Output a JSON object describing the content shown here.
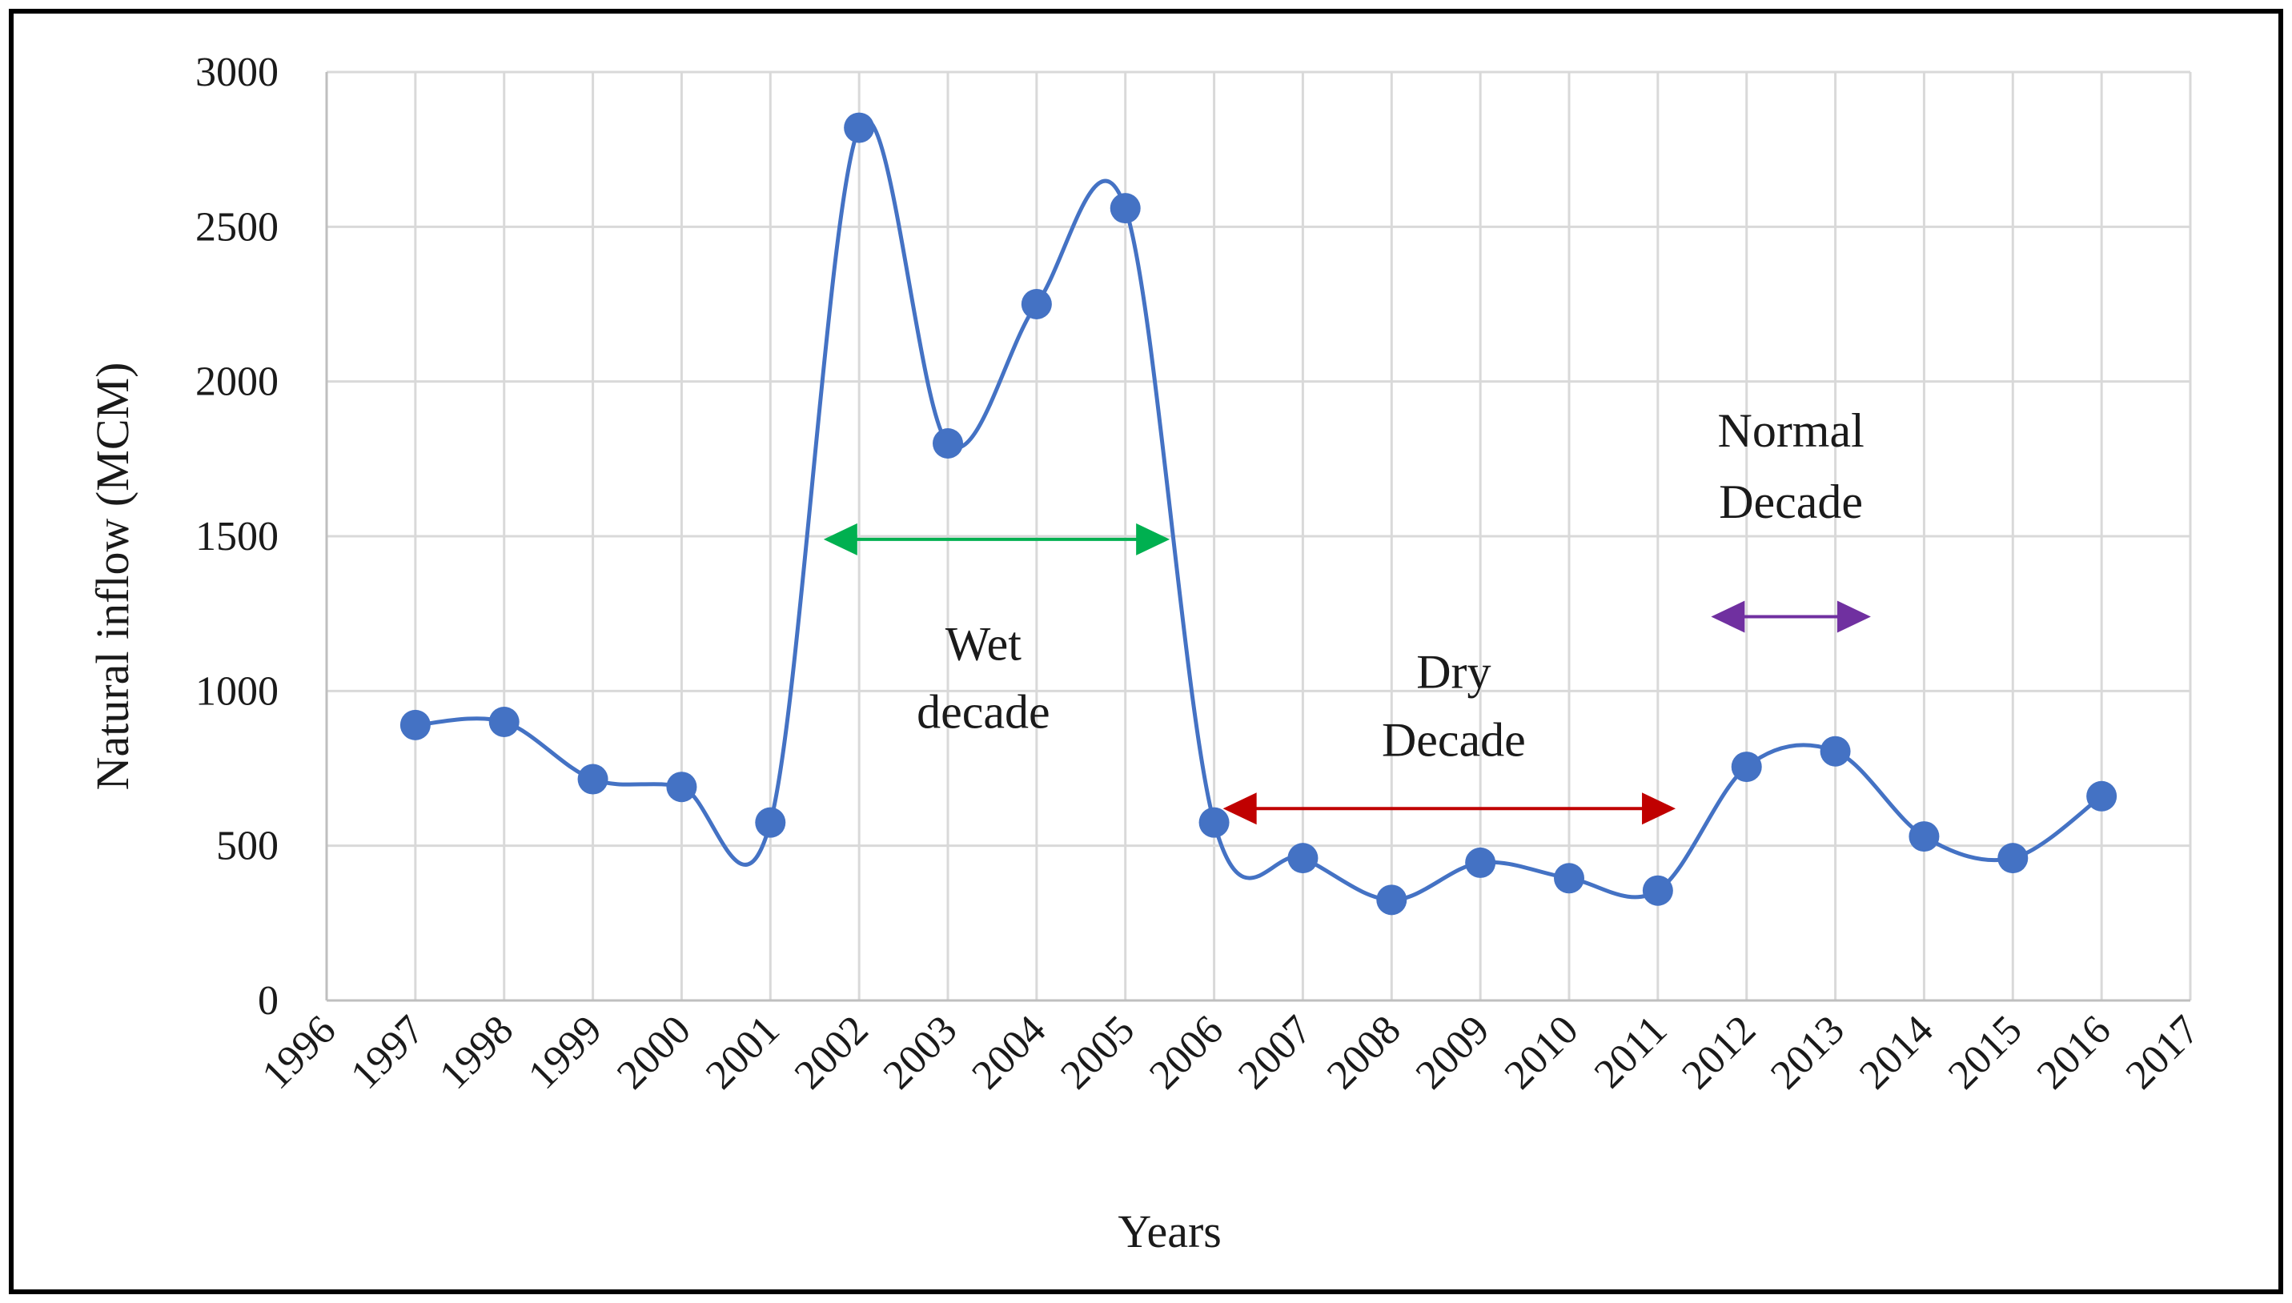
{
  "chart_data": {
    "type": "line",
    "title": "",
    "xlabel": "Years",
    "ylabel": "Natural inflow (MCM)",
    "xlim": [
      1996,
      2017
    ],
    "ylim": [
      0,
      3000
    ],
    "yticks": [
      0,
      500,
      1000,
      1500,
      2000,
      2500,
      3000
    ],
    "xticks": [
      1996,
      1997,
      1998,
      1999,
      2000,
      2001,
      2002,
      2003,
      2004,
      2005,
      2006,
      2007,
      2008,
      2009,
      2010,
      2011,
      2012,
      2013,
      2014,
      2015,
      2016,
      2017
    ],
    "grid": true,
    "smooth": true,
    "series": [
      {
        "name": "Natural inflow",
        "color": "#4472c4",
        "x": [
          1997,
          1998,
          1999,
          2000,
          2001,
          2002,
          2003,
          2004,
          2005,
          2006,
          2007,
          2008,
          2009,
          2010,
          2011,
          2012,
          2013,
          2014,
          2015,
          2016
        ],
        "y": [
          890,
          900,
          715,
          690,
          575,
          2820,
          1800,
          2250,
          2560,
          575,
          460,
          325,
          445,
          395,
          355,
          755,
          805,
          530,
          460,
          660
        ]
      }
    ],
    "annotations": [
      {
        "id": "wet",
        "lines": [
          "Wet",
          "decade"
        ],
        "arrow_from": 2001.6,
        "arrow_to": 2005.5,
        "arrow_y": 1490,
        "text_x": 2003.4,
        "text_y": [
          1100,
          880
        ],
        "color": "#00b050"
      },
      {
        "id": "dry",
        "lines": [
          "Dry",
          "Decade"
        ],
        "arrow_from": 2006.1,
        "arrow_to": 2011.2,
        "arrow_y": 620,
        "text_x": 2008.7,
        "text_y": [
          1010,
          790
        ],
        "color": "#c00000"
      },
      {
        "id": "normal",
        "lines": [
          "Normal",
          "Decade"
        ],
        "arrow_from": 2011.6,
        "arrow_to": 2013.4,
        "arrow_y": 1240,
        "text_x": 2012.5,
        "text_y": [
          1790,
          1560
        ],
        "color": "#7030a0"
      }
    ]
  }
}
